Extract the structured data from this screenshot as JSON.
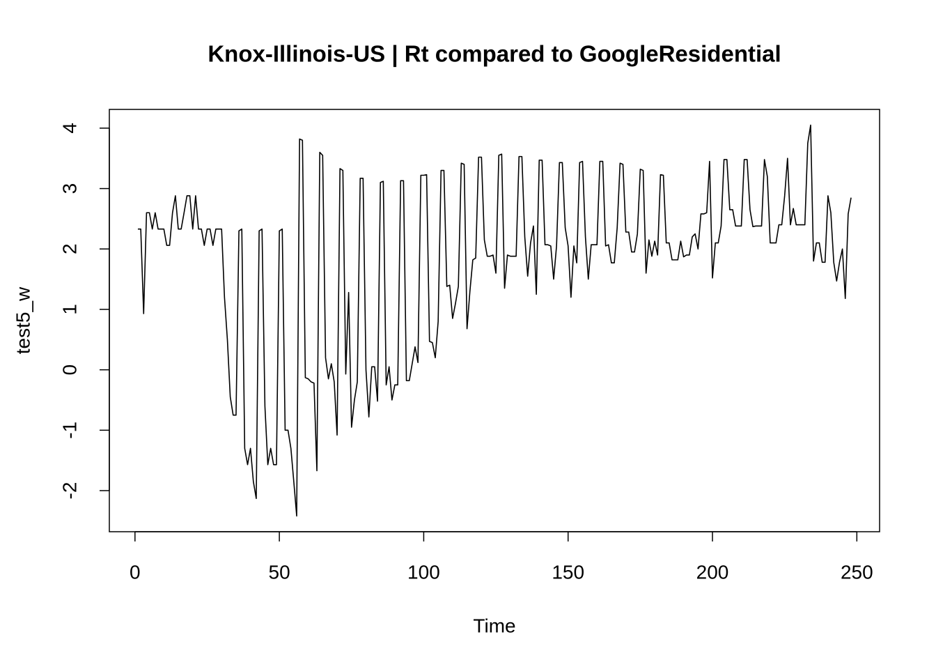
{
  "chart_data": {
    "type": "line",
    "title": "Knox-Illinois-US | Rt compared to GoogleResidential",
    "x_label": "Time",
    "y_label": "test5_w",
    "color": "#000000",
    "grid": false,
    "xlim": [
      -8.88,
      257.88
    ],
    "ylim": [
      -2.68,
      4.31
    ],
    "xticks": [
      0,
      50,
      100,
      150,
      200,
      250
    ],
    "yticks": [
      -2,
      -1,
      0,
      1,
      2,
      3,
      4
    ],
    "x": [
      1,
      2,
      3,
      4,
      5,
      6,
      7,
      8,
      9,
      10,
      11,
      12,
      13,
      14,
      15,
      16,
      17,
      18,
      19,
      20,
      21,
      22,
      23,
      24,
      25,
      26,
      27,
      28,
      29,
      30,
      31,
      32,
      33,
      34,
      35,
      36,
      37,
      38,
      39,
      40,
      41,
      42,
      43,
      44,
      45,
      46,
      47,
      48,
      49,
      50,
      51,
      52,
      53,
      54,
      55,
      56,
      57,
      58,
      59,
      60,
      61,
      62,
      63,
      64,
      65,
      66,
      67,
      68,
      69,
      70,
      71,
      72,
      73,
      74,
      75,
      76,
      77,
      78,
      79,
      80,
      81,
      82,
      83,
      84,
      85,
      86,
      87,
      88,
      89,
      90,
      91,
      92,
      93,
      94,
      95,
      96,
      97,
      98,
      99,
      100,
      101,
      102,
      103,
      104,
      105,
      106,
      107,
      108,
      109,
      110,
      111,
      112,
      113,
      114,
      115,
      116,
      117,
      118,
      119,
      120,
      121,
      122,
      123,
      124,
      125,
      126,
      127,
      128,
      129,
      130,
      131,
      132,
      133,
      134,
      135,
      136,
      137,
      138,
      139,
      140,
      141,
      142,
      143,
      144,
      145,
      146,
      147,
      148,
      149,
      150,
      151,
      152,
      153,
      154,
      155,
      156,
      157,
      158,
      159,
      160,
      161,
      162,
      163,
      164,
      165,
      166,
      167,
      168,
      169,
      170,
      171,
      172,
      173,
      174,
      175,
      176,
      177,
      178,
      179,
      180,
      181,
      182,
      183,
      184,
      185,
      186,
      187,
      188,
      189,
      190,
      191,
      192,
      193,
      194,
      195,
      196,
      197,
      198,
      199,
      200,
      201,
      202,
      203,
      204,
      205,
      206,
      207,
      208,
      209,
      210,
      211,
      212,
      213,
      214,
      215,
      216,
      217,
      218,
      219,
      220,
      221,
      222,
      223,
      224,
      225,
      226,
      227,
      228,
      229,
      230,
      231,
      232,
      233,
      234,
      235,
      236,
      237,
      238,
      239,
      240,
      241,
      242,
      243,
      244,
      245,
      246,
      247,
      248
    ],
    "values": [
      2.33,
      2.33,
      0.93,
      2.6,
      2.6,
      2.33,
      2.6,
      2.33,
      2.33,
      2.33,
      2.06,
      2.06,
      2.6,
      2.88,
      2.33,
      2.33,
      2.6,
      2.88,
      2.88,
      2.33,
      2.88,
      2.33,
      2.33,
      2.06,
      2.33,
      2.33,
      2.06,
      2.33,
      2.33,
      2.33,
      1.2,
      0.5,
      -0.45,
      -0.75,
      -0.75,
      2.3,
      2.33,
      -1.3,
      -1.57,
      -1.3,
      -1.85,
      -2.13,
      2.3,
      2.33,
      -0.6,
      -1.57,
      -1.3,
      -1.57,
      -1.57,
      2.3,
      2.33,
      -1.0,
      -1.0,
      -1.3,
      -1.85,
      -2.42,
      3.82,
      3.8,
      -0.13,
      -0.15,
      -0.2,
      -0.22,
      -1.67,
      3.6,
      3.55,
      0.2,
      -0.15,
      0.1,
      -0.2,
      -1.08,
      3.33,
      3.3,
      -0.07,
      1.28,
      -0.95,
      -0.5,
      -0.2,
      3.17,
      3.17,
      0.0,
      -0.78,
      0.05,
      0.05,
      -0.52,
      3.1,
      3.12,
      -0.25,
      0.05,
      -0.5,
      -0.25,
      -0.25,
      3.13,
      3.13,
      -0.18,
      -0.18,
      0.1,
      0.38,
      0.12,
      3.22,
      3.22,
      3.23,
      0.47,
      0.45,
      0.2,
      0.8,
      3.3,
      3.3,
      1.38,
      1.4,
      0.85,
      1.1,
      1.38,
      3.42,
      3.4,
      0.68,
      1.3,
      1.82,
      1.85,
      3.52,
      3.52,
      2.15,
      1.88,
      1.88,
      1.9,
      1.6,
      3.55,
      3.57,
      1.35,
      1.9,
      1.88,
      1.88,
      1.88,
      3.53,
      3.53,
      2.2,
      1.55,
      2.1,
      2.38,
      1.25,
      3.47,
      3.47,
      2.07,
      2.07,
      2.05,
      1.5,
      2.05,
      3.43,
      3.43,
      2.35,
      2.05,
      1.2,
      2.05,
      1.77,
      3.43,
      3.45,
      2.2,
      1.5,
      2.07,
      2.07,
      2.07,
      3.45,
      3.45,
      2.05,
      2.07,
      1.77,
      1.77,
      2.35,
      3.42,
      3.4,
      2.28,
      2.28,
      1.95,
      1.95,
      2.25,
      3.32,
      3.3,
      1.6,
      2.15,
      1.88,
      2.13,
      1.9,
      3.23,
      3.22,
      2.1,
      2.1,
      1.82,
      1.82,
      1.82,
      2.13,
      1.87,
      1.9,
      1.9,
      2.2,
      2.25,
      2.0,
      2.58,
      2.58,
      2.6,
      3.45,
      1.52,
      2.1,
      2.1,
      2.38,
      3.48,
      3.48,
      2.65,
      2.65,
      2.38,
      2.38,
      2.38,
      3.48,
      3.48,
      2.65,
      2.37,
      2.38,
      2.38,
      2.38,
      3.48,
      3.2,
      2.1,
      2.1,
      2.1,
      2.4,
      2.4,
      2.88,
      3.5,
      2.4,
      2.67,
      2.4,
      2.4,
      2.4,
      2.4,
      3.75,
      4.05,
      1.8,
      2.1,
      2.1,
      1.78,
      1.78,
      2.88,
      2.6,
      1.78,
      1.47,
      1.78,
      2.0,
      1.18,
      2.58,
      2.85
    ]
  }
}
